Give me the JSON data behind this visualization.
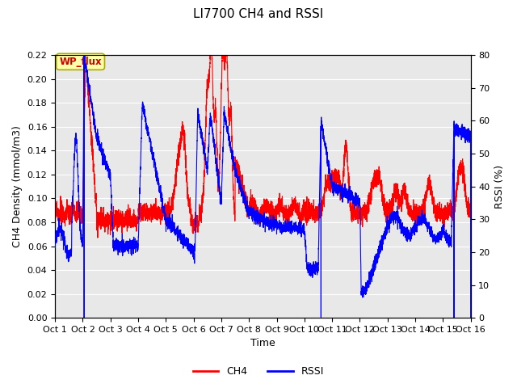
{
  "title": "LI7700 CH4 and RSSI",
  "ylabel_left": "CH4 Density (mmol/m3)",
  "ylabel_right": "RSSI (%)",
  "xlabel": "Time",
  "ylim_left": [
    0.0,
    0.22
  ],
  "ylim_right": [
    0,
    80
  ],
  "yticks_left": [
    0.0,
    0.02,
    0.04,
    0.06,
    0.08,
    0.1,
    0.12,
    0.14,
    0.16,
    0.18,
    0.2,
    0.22
  ],
  "yticks_right": [
    0,
    10,
    20,
    30,
    40,
    50,
    60,
    70,
    80
  ],
  "xtick_labels": [
    "Oct 1",
    "Oct 2",
    "Oct 3",
    "Oct 4",
    "Oct 5",
    "Oct 6",
    "Oct 7",
    "Oct 8",
    "Oct 9",
    "Oct 10",
    "Oct 11",
    "Oct 12",
    "Oct 13",
    "Oct 14",
    "Oct 15",
    "Oct 16"
  ],
  "annotation_text": "WP_flux",
  "ch4_color": "#FF0000",
  "rssi_color": "#0000FF",
  "background_color": "#E8E8E8",
  "grid_color": "#FFFFFF",
  "legend_ch4": "CH4",
  "legend_rssi": "RSSI",
  "linewidth": 0.8
}
